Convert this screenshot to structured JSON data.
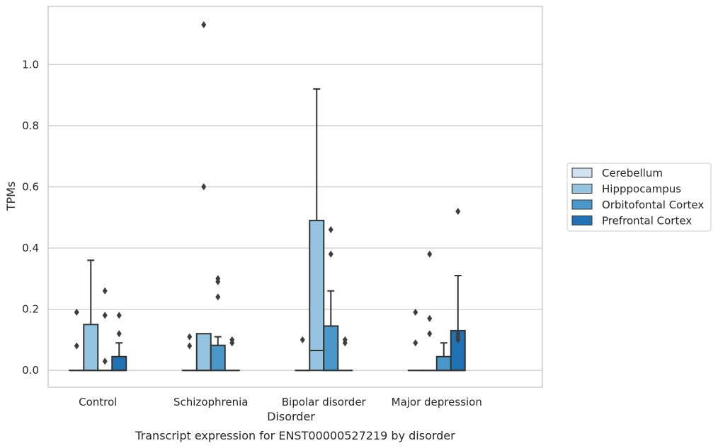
{
  "chart_data": {
    "type": "box",
    "title": "",
    "caption": "Transcript expression for ENST00000527219 by disorder",
    "xlabel": "Disorder",
    "ylabel": "TPMs",
    "categories": [
      "Control",
      "Schizophrenia",
      "Bipolar disorder",
      "Major depression"
    ],
    "ylim": [
      -0.055,
      1.19
    ],
    "yticks": [
      0.0,
      0.2,
      0.4,
      0.6,
      0.8,
      1.0
    ],
    "ytick_labels": [
      "0.0",
      "0.2",
      "0.4",
      "0.6",
      "0.8",
      "1.0"
    ],
    "grid": "horizontal",
    "legend_position": "right",
    "series": [
      {
        "name": "Cerebellum",
        "color": "#d0e1f2",
        "boxes": [
          {
            "category": "Control",
            "q1": 0,
            "median": 0,
            "q3": 0,
            "whisker_low": 0,
            "whisker_high": 0,
            "outliers": [
              0.08,
              0.19
            ]
          },
          {
            "category": "Schizophrenia",
            "q1": 0,
            "median": 0,
            "q3": 0,
            "whisker_low": 0,
            "whisker_high": 0,
            "outliers": [
              0.08,
              0.11
            ]
          },
          {
            "category": "Bipolar disorder",
            "q1": 0,
            "median": 0,
            "q3": 0,
            "whisker_low": 0,
            "whisker_high": 0,
            "outliers": [
              0.1
            ]
          },
          {
            "category": "Major depression",
            "q1": 0,
            "median": 0,
            "q3": 0,
            "whisker_low": 0,
            "whisker_high": 0,
            "outliers": [
              0.09,
              0.19
            ]
          }
        ]
      },
      {
        "name": "Hipppocampus",
        "color": "#94c4df",
        "boxes": [
          {
            "category": "Control",
            "q1": 0,
            "median": 0,
            "q3": 0.15,
            "whisker_low": 0,
            "whisker_high": 0.36,
            "outliers": []
          },
          {
            "category": "Schizophrenia",
            "q1": 0,
            "median": 0,
            "q3": 0.12,
            "whisker_low": 0,
            "whisker_high": 0.12,
            "outliers": [
              0.6,
              1.13
            ]
          },
          {
            "category": "Bipolar disorder",
            "q1": 0,
            "median": 0.065,
            "q3": 0.49,
            "whisker_low": 0,
            "whisker_high": 0.92,
            "outliers": []
          },
          {
            "category": "Major depression",
            "q1": 0,
            "median": 0,
            "q3": 0,
            "whisker_low": 0,
            "whisker_high": 0,
            "outliers": [
              0.12,
              0.17,
              0.38
            ]
          }
        ]
      },
      {
        "name": "Orbitofontal Cortex",
        "color": "#4a98c9",
        "boxes": [
          {
            "category": "Control",
            "q1": 0,
            "median": 0,
            "q3": 0,
            "whisker_low": 0,
            "whisker_high": 0,
            "outliers": [
              0.03,
              0.18,
              0.26
            ]
          },
          {
            "category": "Schizophrenia",
            "q1": 0,
            "median": 0,
            "q3": 0.082,
            "whisker_low": 0,
            "whisker_high": 0.11,
            "outliers": [
              0.24,
              0.29,
              0.3
            ]
          },
          {
            "category": "Bipolar disorder",
            "q1": 0,
            "median": 0,
            "q3": 0.145,
            "whisker_low": 0,
            "whisker_high": 0.26,
            "outliers": [
              0.38,
              0.46
            ]
          },
          {
            "category": "Major depression",
            "q1": 0,
            "median": 0,
            "q3": 0.045,
            "whisker_low": 0,
            "whisker_high": 0.09,
            "outliers": []
          }
        ]
      },
      {
        "name": "Prefrontal Cortex",
        "color": "#2171b5",
        "boxes": [
          {
            "category": "Control",
            "q1": 0,
            "median": 0,
            "q3": 0.045,
            "whisker_low": 0,
            "whisker_high": 0.09,
            "outliers": [
              0.12,
              0.18
            ]
          },
          {
            "category": "Schizophrenia",
            "q1": 0,
            "median": 0,
            "q3": 0,
            "whisker_low": 0,
            "whisker_high": 0,
            "outliers": [
              0.09,
              0.1
            ]
          },
          {
            "category": "Bipolar disorder",
            "q1": 0,
            "median": 0,
            "q3": 0,
            "whisker_low": 0,
            "whisker_high": 0,
            "outliers": [
              0.09,
              0.1
            ]
          },
          {
            "category": "Major depression",
            "q1": 0,
            "median": 0,
            "q3": 0.13,
            "whisker_low": 0,
            "whisker_high": 0.31,
            "outliers": [
              0.1,
              0.11,
              0.12,
              0.52
            ]
          }
        ]
      }
    ]
  }
}
